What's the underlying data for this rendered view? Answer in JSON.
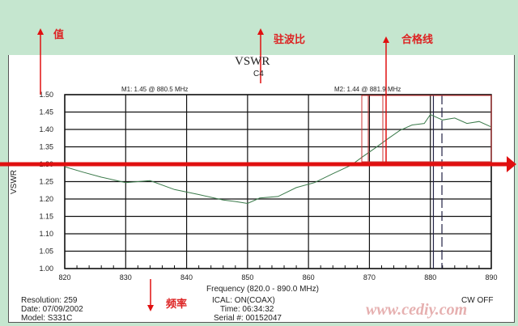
{
  "annotations": {
    "value": "值",
    "vswr": "驻波比",
    "pass_line": "合格线",
    "frequency": "频率",
    "pass_line_value": 1.3,
    "color": "#e01010"
  },
  "watermark": "www.cediy.com",
  "footer": {
    "resolution": "Resolution:  259",
    "date": "Date: 07/09/2002",
    "model": "Model: S331C",
    "ical": "ICAL: ON(COAX)",
    "time": "Time: 06:34:32",
    "serial": "Serial #: 00152047",
    "cw": "CW OFF"
  },
  "chart_data": {
    "type": "line",
    "title": "VSWR",
    "subtitle": "C4",
    "xlabel": "Frequency (820.0 - 890.0 MHz)",
    "ylabel": "VSWR",
    "xlim": [
      820,
      890
    ],
    "ylim": [
      1.0,
      1.5
    ],
    "grid": true,
    "xticks": [
      "820",
      "830",
      "840",
      "850",
      "860",
      "870",
      "880",
      "890"
    ],
    "yticks": [
      "1.00",
      "1.05",
      "1.10",
      "1.15",
      "1.20",
      "1.25",
      "1.30",
      "1.35",
      "1.40",
      "1.45",
      "1.50"
    ],
    "markers": [
      {
        "label": "M1: 1.45 @ 880.5 MHz",
        "x": 880.5
      },
      {
        "label": "M2: 1.44 @ 881.9 MHz",
        "x": 881.9
      }
    ],
    "series": [
      {
        "color": "#3a7a4a",
        "x": [
          820,
          823,
          826,
          830,
          834,
          838,
          842,
          846,
          848,
          850,
          852,
          855,
          858,
          861,
          864,
          867,
          869,
          871,
          873,
          875,
          877,
          879,
          880,
          882,
          884,
          886,
          888,
          890
        ],
        "y": [
          1.29,
          1.28,
          1.26,
          1.25,
          1.25,
          1.23,
          1.21,
          1.2,
          1.19,
          1.19,
          1.2,
          1.21,
          1.23,
          1.25,
          1.27,
          1.3,
          1.32,
          1.35,
          1.37,
          1.4,
          1.41,
          1.42,
          1.44,
          1.43,
          1.43,
          1.42,
          1.42,
          1.41
        ]
      }
    ]
  }
}
